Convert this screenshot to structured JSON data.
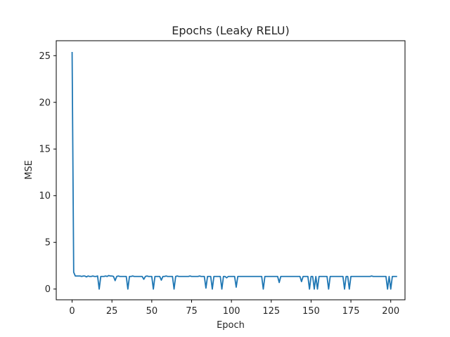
{
  "chart_data": {
    "type": "line",
    "title": "Epochs (Leaky RELU)",
    "xlabel": "Epoch",
    "ylabel": "MSE",
    "xlim": [
      -9.95,
      208.95
    ],
    "ylim": [
      -1.15,
      26.6
    ],
    "xticks": [
      0,
      25,
      50,
      75,
      100,
      125,
      150,
      175,
      200
    ],
    "yticks": [
      0,
      5,
      10,
      15,
      20,
      25
    ],
    "grid": false,
    "line_color": "#1f77b4",
    "series": [
      {
        "values": [
          25.4,
          1.8,
          1.4,
          1.4,
          1.4,
          1.4,
          1.35,
          1.4,
          1.4,
          1.3,
          1.4,
          1.35,
          1.35,
          1.4,
          1.35,
          1.35,
          1.4,
          0.0,
          1.35,
          1.35,
          1.35,
          1.4,
          1.35,
          1.45,
          1.4,
          1.4,
          1.35,
          0.9,
          1.35,
          1.4,
          1.35,
          1.35,
          1.35,
          1.35,
          1.35,
          0.0,
          1.35,
          1.35,
          1.4,
          1.35,
          1.35,
          1.35,
          1.35,
          1.35,
          1.35,
          1.05,
          1.35,
          1.4,
          1.35,
          1.35,
          1.35,
          0.0,
          1.35,
          1.35,
          1.35,
          1.35,
          0.95,
          1.35,
          1.35,
          1.4,
          1.35,
          1.35,
          1.35,
          1.35,
          0.0,
          1.35,
          1.4,
          1.35,
          1.35,
          1.35,
          1.35,
          1.35,
          1.35,
          1.35,
          1.4,
          1.35,
          1.35,
          1.35,
          1.35,
          1.35,
          1.4,
          1.35,
          1.35,
          1.35,
          0.1,
          1.35,
          1.35,
          1.35,
          0.0,
          1.35,
          1.35,
          1.35,
          1.35,
          1.35,
          0.0,
          1.35,
          1.35,
          1.2,
          1.35,
          1.35,
          1.35,
          1.35,
          1.35,
          0.2,
          1.35,
          1.35,
          1.35,
          1.35,
          1.35,
          1.35,
          1.35,
          1.35,
          1.35,
          1.35,
          1.35,
          1.35,
          1.35,
          1.35,
          1.35,
          1.35,
          0.0,
          1.35,
          1.35,
          1.35,
          1.35,
          1.35,
          1.35,
          1.35,
          1.35,
          1.35,
          0.7,
          1.35,
          1.35,
          1.35,
          1.35,
          1.35,
          1.35,
          1.35,
          1.35,
          1.35,
          1.35,
          1.35,
          1.35,
          1.35,
          0.8,
          1.35,
          1.35,
          1.35,
          1.35,
          0.0,
          1.35,
          1.35,
          0.0,
          1.35,
          0.0,
          1.35,
          1.35,
          1.35,
          1.35,
          1.35,
          1.35,
          0.0,
          1.35,
          1.35,
          1.35,
          1.35,
          1.35,
          1.35,
          1.35,
          1.35,
          1.35,
          0.0,
          1.35,
          1.35,
          0.0,
          1.35,
          1.35,
          1.35,
          1.35,
          1.35,
          1.35,
          1.35,
          1.35,
          1.35,
          1.35,
          1.35,
          1.35,
          1.35,
          1.4,
          1.35,
          1.35,
          1.35,
          1.35,
          1.35,
          1.35,
          1.35,
          1.35,
          1.35,
          0.0,
          1.35,
          0.0,
          1.35,
          1.35,
          1.35,
          1.35
        ]
      }
    ]
  }
}
